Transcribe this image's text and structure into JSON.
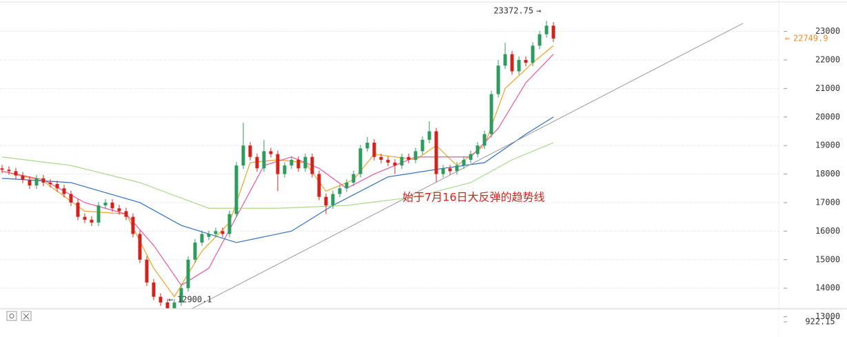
{
  "chart_data": {
    "type": "candlestick",
    "up_color": "#2e9b5e",
    "down_color": "#d0231c",
    "candles": {
      "open": [
        18200,
        18150,
        18100,
        17950,
        17800,
        17600,
        17850,
        17700,
        17650,
        17500,
        17300,
        17000,
        16500,
        16400,
        16300,
        16900,
        17000,
        16800,
        16700,
        16500,
        15900,
        15000,
        14200,
        13700,
        13500,
        13300,
        13500,
        14000,
        15000,
        15600,
        15800,
        15900,
        16000,
        15900,
        16600,
        18300,
        19000,
        18600,
        18200,
        18800,
        18700,
        18000,
        18300,
        18500,
        18200,
        18600,
        18000,
        17200,
        16900,
        17300,
        17500,
        17700,
        18000,
        18900,
        19100,
        18600,
        18500,
        18400,
        18300,
        18600,
        18500,
        18800,
        19200,
        19500,
        18000,
        18200,
        18100,
        18300,
        18500,
        18700,
        19000,
        19400,
        20800,
        21800,
        22200,
        21600,
        22000,
        21900,
        22500,
        22900,
        23200
      ],
      "high": [
        18320,
        18270,
        18220,
        18070,
        17920,
        17970,
        17970,
        17820,
        17770,
        17620,
        17420,
        17120,
        16620,
        16520,
        17020,
        17120,
        17120,
        16920,
        16820,
        16620,
        16020,
        15120,
        14320,
        13820,
        13620,
        13620,
        14120,
        15120,
        15720,
        16020,
        16020,
        16120,
        16120,
        16720,
        18420,
        19800,
        19120,
        18720,
        19200,
        18920,
        18820,
        18420,
        18620,
        18620,
        18720,
        18720,
        18120,
        17320,
        17420,
        17620,
        17820,
        18120,
        19020,
        19300,
        19220,
        18720,
        18620,
        18520,
        18720,
        18720,
        18920,
        19320,
        19850,
        19620,
        18320,
        18320,
        18420,
        18620,
        18820,
        19120,
        19520,
        20920,
        22000,
        22600,
        22320,
        22120,
        22120,
        22620,
        23020,
        23372.75,
        23320
      ],
      "low": [
        18030,
        17980,
        17830,
        17680,
        17480,
        17480,
        17580,
        17530,
        17380,
        17180,
        16880,
        16380,
        16280,
        16180,
        16180,
        16780,
        16680,
        16580,
        16380,
        15780,
        14880,
        14080,
        13580,
        13380,
        12900.1,
        13180,
        13380,
        13880,
        14880,
        15480,
        15680,
        15780,
        15780,
        15780,
        16480,
        18180,
        18480,
        18080,
        18080,
        18580,
        17400,
        17880,
        18180,
        18080,
        18080,
        17880,
        17080,
        16600,
        16780,
        17180,
        17380,
        17580,
        17880,
        18780,
        18480,
        18380,
        18280,
        18000,
        18180,
        18380,
        18380,
        18680,
        19080,
        17700,
        17880,
        17980,
        17980,
        18180,
        18380,
        18580,
        18880,
        19280,
        20680,
        21680,
        21480,
        21480,
        21780,
        21780,
        22380,
        22780,
        22630
      ],
      "close": [
        18150,
        18100,
        17950,
        17800,
        17600,
        17850,
        17700,
        17650,
        17500,
        17300,
        17000,
        16500,
        16400,
        16300,
        16900,
        17000,
        16800,
        16700,
        16500,
        15900,
        15000,
        14200,
        13700,
        13500,
        13300,
        13500,
        14000,
        15000,
        15600,
        15900,
        15900,
        16000,
        15900,
        16600,
        18300,
        19000,
        18600,
        18200,
        18800,
        18700,
        18000,
        18300,
        18500,
        18200,
        18600,
        18000,
        17200,
        16900,
        17300,
        17500,
        17700,
        18000,
        18900,
        19100,
        18600,
        18500,
        18400,
        18300,
        18600,
        18500,
        18800,
        19200,
        19500,
        18000,
        18200,
        18100,
        18300,
        18500,
        18700,
        19000,
        19400,
        20800,
        21800,
        22200,
        21600,
        22000,
        21900,
        22500,
        22900,
        23200,
        22749.9
      ]
    },
    "moving_averages": [
      {
        "color": "#f0a020",
        "x": [
          0,
          6,
          12,
          18,
          22,
          25,
          29,
          33,
          36,
          40,
          44,
          47,
          51,
          54,
          60,
          63,
          66,
          70,
          73,
          77,
          80
        ],
        "values": [
          18100,
          17750,
          16700,
          16600,
          14700,
          13700,
          15300,
          16300,
          18400,
          18500,
          18400,
          17400,
          17800,
          18700,
          18500,
          19000,
          18300,
          19000,
          21000,
          21900,
          22500
        ]
      },
      {
        "color": "#e8559a",
        "x": [
          0,
          6,
          12,
          18,
          22,
          26,
          30,
          34,
          38,
          42,
          46,
          50,
          54,
          60,
          64,
          68,
          72,
          76,
          80
        ],
        "values": [
          18100,
          17800,
          17000,
          16600,
          15500,
          14100,
          14700,
          16500,
          18300,
          18600,
          18200,
          17500,
          18000,
          18600,
          18600,
          18600,
          19600,
          21200,
          22200
        ]
      },
      {
        "color": "#2f6fc4",
        "x": [
          0,
          10,
          20,
          26,
          34,
          42,
          48,
          56,
          64,
          70,
          76,
          80
        ],
        "values": [
          17850,
          17700,
          17000,
          16200,
          15600,
          16000,
          16900,
          17900,
          18200,
          18400,
          19400,
          20000
        ]
      },
      {
        "color": "#a8d98a",
        "x": [
          0,
          10,
          20,
          30,
          40,
          50,
          60,
          68,
          74,
          80
        ],
        "values": [
          18600,
          18300,
          17700,
          16800,
          16800,
          16900,
          17200,
          17700,
          18500,
          19100
        ]
      }
    ],
    "trendline": {
      "x": [
        24.5,
        107.5
      ],
      "values": [
        12900,
        23280
      ]
    },
    "annotation": "始于7月16日大反弹的趋势线",
    "ylim": [
      12700,
      24100
    ],
    "yticks": [
      13000,
      14000,
      15000,
      16000,
      17000,
      18000,
      19000,
      20000,
      21000,
      22000,
      23000
    ],
    "grid": true,
    "indicator_value": "922.15"
  }
}
